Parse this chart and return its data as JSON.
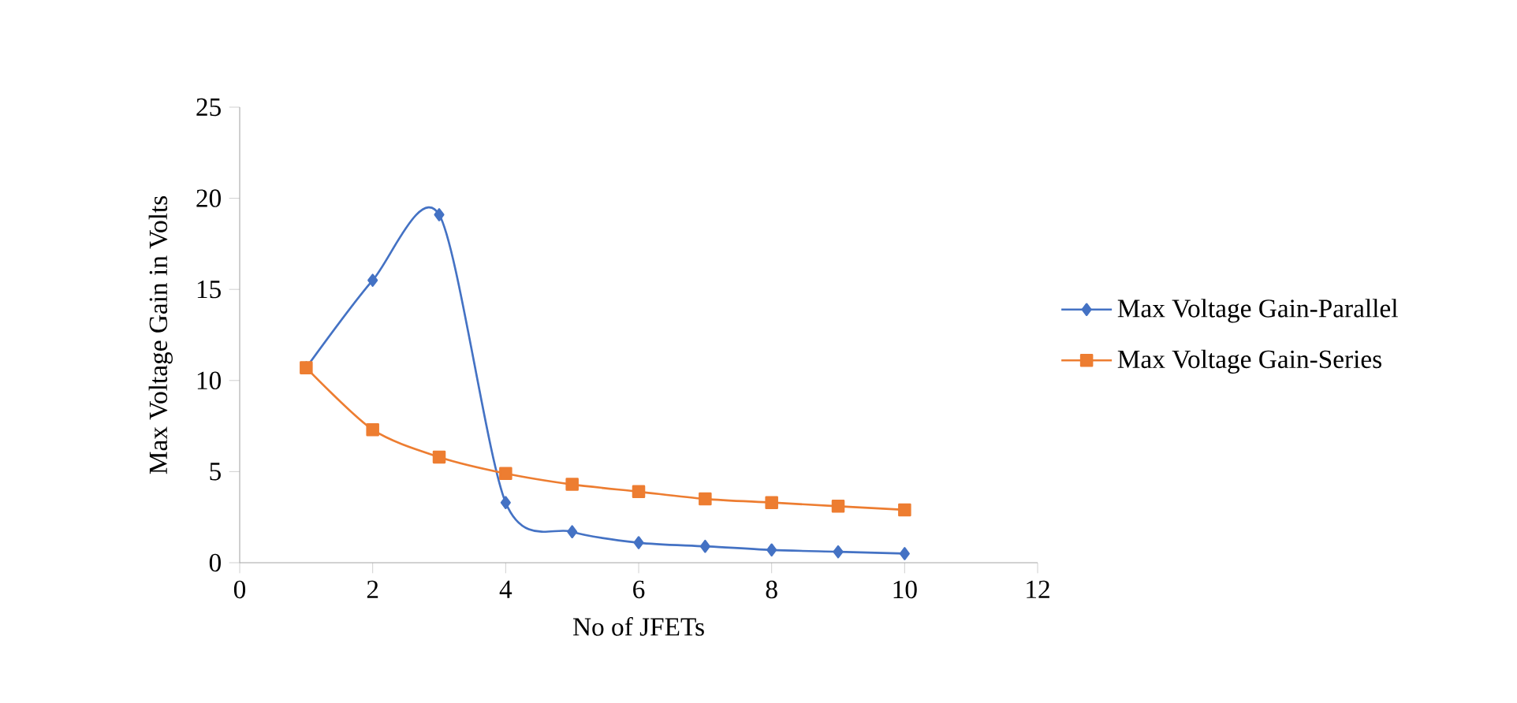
{
  "chart_data": {
    "type": "line",
    "xlabel": "No of JFETs",
    "ylabel": "Max Voltage Gain in Volts",
    "x": [
      1,
      2,
      3,
      4,
      5,
      6,
      7,
      8,
      9,
      10
    ],
    "series": [
      {
        "name": "Max Voltage Gain-Parallel",
        "color": "#4472c4",
        "marker": "diamond",
        "values": [
          10.7,
          15.5,
          19.1,
          3.3,
          1.7,
          1.1,
          0.9,
          0.7,
          0.6,
          0.5
        ]
      },
      {
        "name": "Max Voltage Gain-Series",
        "color": "#ed7d31",
        "marker": "square",
        "values": [
          10.7,
          7.3,
          5.8,
          4.9,
          4.3,
          3.9,
          3.5,
          3.3,
          3.1,
          2.9
        ]
      }
    ],
    "xlim": [
      0,
      12
    ],
    "xticks": [
      0,
      2,
      4,
      6,
      8,
      10,
      12
    ],
    "ylim": [
      0,
      25
    ],
    "yticks": [
      0,
      5,
      10,
      15,
      20,
      25
    ],
    "grid": false,
    "legend": "right"
  }
}
